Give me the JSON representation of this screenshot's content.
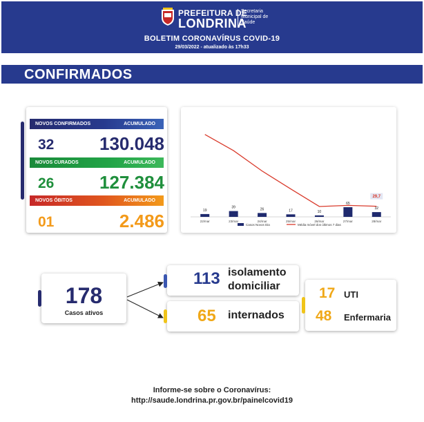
{
  "header": {
    "prefeitura_line1": "PREFEITURA DE",
    "prefeitura_line2": "LONDRINA",
    "secretaria": "Secretaria\nMunicipal de\nSaúde",
    "title": "BOLETIM CORONAVÍRUS COVID-19",
    "date": "29/03/2022 - atualizado às 17h33",
    "bg_color": "#273a8e"
  },
  "section": {
    "title": "CONFIRMADOS"
  },
  "stats": {
    "confirmados": {
      "label": "NOVOS CONFIRMADOS",
      "acc_label": "ACUMULADO",
      "new": "32",
      "accumulated": "130.048",
      "color": "#262b6e"
    },
    "curados": {
      "label": "NOVOS CURADOS",
      "acc_label": "ACUMULADO",
      "new": "26",
      "accumulated": "127.384",
      "color": "#1f8f3c"
    },
    "obitos": {
      "label": "NOVOS ÓBITOS",
      "acc_label": "ACUMULADO",
      "new": "01",
      "accumulated": "2.486",
      "color": "#f39a1a"
    }
  },
  "chart_data": {
    "type": "bar",
    "categories": [
      "22/mar",
      "23/mar",
      "24/mar",
      "25/mar",
      "26/mar",
      "27/mar",
      "28/mar"
    ],
    "series": [
      {
        "name": "Casos Novos Dia",
        "kind": "bar",
        "values": [
          19,
          39,
          26,
          17,
          10,
          65,
          32
        ],
        "color": "#1f2a6e"
      },
      {
        "name": "Média móvel dos últimos 7 dias",
        "kind": "line",
        "values": [
          230,
          185,
          128,
          78,
          29,
          32,
          29.7
        ],
        "color": "#d93a2b"
      }
    ],
    "bar_labels": [
      "19",
      "39",
      "26",
      "17",
      "10",
      "65",
      "32"
    ],
    "highlight_label": "29,7",
    "ylim_bars": [
      0,
      650
    ],
    "ylim_line": [
      0,
      270
    ],
    "legend": "bottom",
    "grid": false
  },
  "summary": {
    "active": {
      "value": "178",
      "label": "Casos ativos"
    },
    "isolation": {
      "value": "113",
      "label_line1": "isolamento",
      "label_line2": "domiciliar"
    },
    "hospitalized": {
      "value": "65",
      "label": "internados"
    },
    "uti": {
      "value": "17",
      "label": "UTI"
    },
    "enfermaria": {
      "value": "48",
      "label": "Enfermaria"
    }
  },
  "footer": {
    "line1": "Informe-se sobre o Coronavírus:",
    "line2": "http://saude.londrina.pr.gov.br/painelcovid19"
  }
}
